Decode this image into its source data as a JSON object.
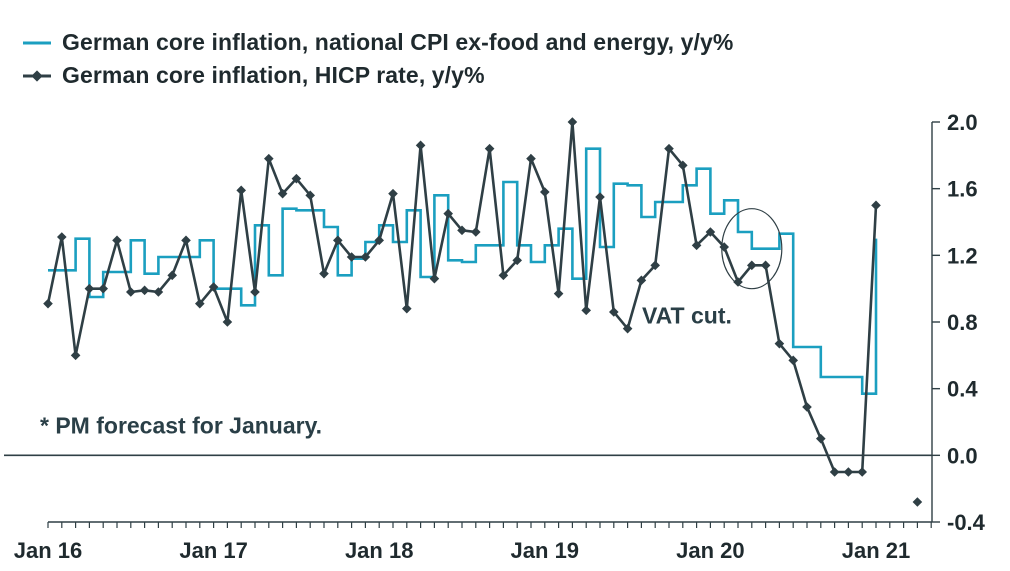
{
  "chart_data": {
    "type": "line",
    "title": "",
    "xlabel": "",
    "ylabel": "",
    "ylim": [
      -0.4,
      2.0
    ],
    "yticks": [
      2.0,
      1.6,
      1.2,
      0.8,
      0.4,
      0.0,
      -0.4
    ],
    "ytick_labels": [
      "2.0",
      "1.6",
      "1.2",
      "0.8",
      "0.4",
      "0.0",
      "-0.4"
    ],
    "xlim_months": [
      0,
      64
    ],
    "xticks": [
      {
        "label": "Jan 16",
        "month": 0
      },
      {
        "label": "Jan 17",
        "month": 12
      },
      {
        "label": "Jan 18",
        "month": 24
      },
      {
        "label": "Jan 19",
        "month": 36
      },
      {
        "label": "Jan 20",
        "month": 48
      },
      {
        "label": "Jan 21",
        "month": 60
      }
    ],
    "zero_line": 0.0,
    "series": [
      {
        "name": "German core inflation, national CPI ex-food and energy, y/y%",
        "color": "#1b9fc0",
        "marker": "none",
        "style": "step",
        "values": [
          1.11,
          1.11,
          1.3,
          0.95,
          1.1,
          1.1,
          1.29,
          1.09,
          1.19,
          1.19,
          1.19,
          1.29,
          1.0,
          1.0,
          0.9,
          1.38,
          1.08,
          1.48,
          1.47,
          1.47,
          1.37,
          1.08,
          1.18,
          1.28,
          1.38,
          1.28,
          1.47,
          1.07,
          1.56,
          1.17,
          1.16,
          1.26,
          1.26,
          1.64,
          1.26,
          1.16,
          1.26,
          1.36,
          1.06,
          1.84,
          1.25,
          1.63,
          1.62,
          1.43,
          1.52,
          1.52,
          1.62,
          1.72,
          1.45,
          1.53,
          1.34,
          1.24,
          1.24,
          1.33,
          0.65,
          0.65,
          0.47,
          0.47,
          0.47,
          0.37,
          1.3
        ]
      },
      {
        "name": "German core inflation, HICP rate, y/y%",
        "color": "#2f3f45",
        "marker": "diamond",
        "style": "line",
        "values": [
          0.91,
          1.31,
          0.6,
          1.0,
          1.0,
          1.29,
          0.98,
          0.99,
          0.98,
          1.08,
          1.29,
          0.91,
          1.01,
          0.8,
          1.59,
          0.98,
          1.78,
          1.57,
          1.66,
          1.56,
          1.09,
          1.29,
          1.19,
          1.19,
          1.29,
          1.57,
          0.88,
          1.86,
          1.06,
          1.45,
          1.35,
          1.34,
          1.84,
          1.08,
          1.17,
          1.78,
          1.58,
          0.97,
          2.0,
          0.87,
          1.55,
          0.86,
          0.76,
          1.05,
          1.14,
          1.84,
          1.74,
          1.26,
          1.34,
          1.25,
          1.04,
          1.14,
          1.14,
          0.67,
          0.57,
          0.29,
          0.1,
          -0.1,
          -0.1,
          -0.1,
          1.5
        ]
      }
    ],
    "extra_points": [
      {
        "series": "German core inflation, HICP rate, y/y%",
        "month": 63,
        "value": -0.28
      }
    ],
    "annotations": [
      {
        "text": "VAT cut.",
        "month": 51,
        "value": 0.84
      },
      {
        "text": "* PM forecast for January.",
        "month": 0,
        "value": 0.18
      }
    ],
    "highlight_ellipse": {
      "center_month": 51,
      "center_value": 1.24
    }
  }
}
